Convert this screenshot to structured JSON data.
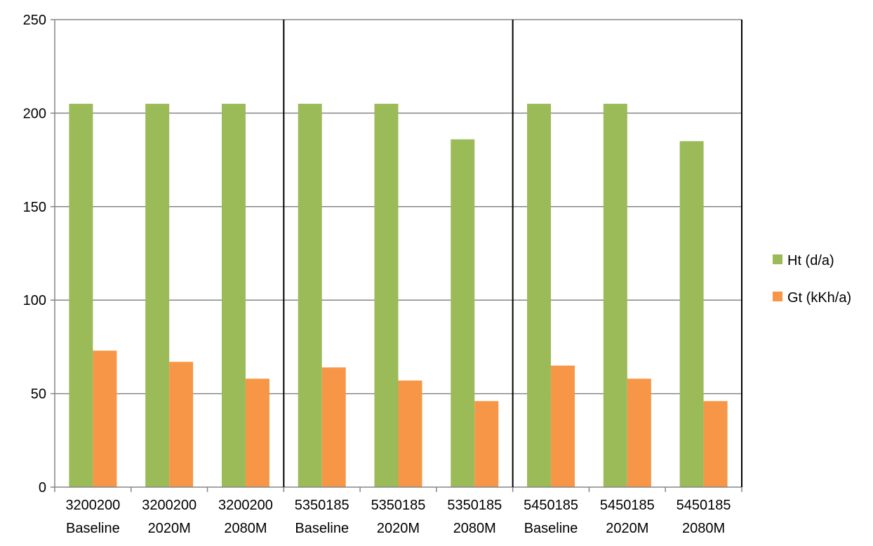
{
  "chart_data": {
    "type": "bar",
    "title": "",
    "xlabel": "",
    "ylabel": "",
    "ylim": [
      0,
      250
    ],
    "yticks": [
      0,
      50,
      100,
      150,
      200,
      250
    ],
    "grid": true,
    "legend_position": "right",
    "categories": [
      [
        "3200200",
        "Baseline"
      ],
      [
        "3200200",
        "2020M"
      ],
      [
        "3200200",
        "2080M"
      ],
      [
        "5350185",
        "Baseline"
      ],
      [
        "5350185",
        "2020M"
      ],
      [
        "5350185",
        "2080M"
      ],
      [
        "5450185",
        "Baseline"
      ],
      [
        "5450185",
        "2020M"
      ],
      [
        "5450185",
        "2080M"
      ]
    ],
    "group_separators_after": [
      2,
      5,
      8
    ],
    "series": [
      {
        "name": "Ht (d/a)",
        "color": "#9BBB59",
        "values": [
          205,
          205,
          205,
          205,
          205,
          186,
          205,
          205,
          185
        ]
      },
      {
        "name": "Gt (kKh/a)",
        "color": "#F79646",
        "values": [
          73,
          67,
          58,
          64,
          57,
          46,
          65,
          58,
          46
        ]
      }
    ]
  }
}
